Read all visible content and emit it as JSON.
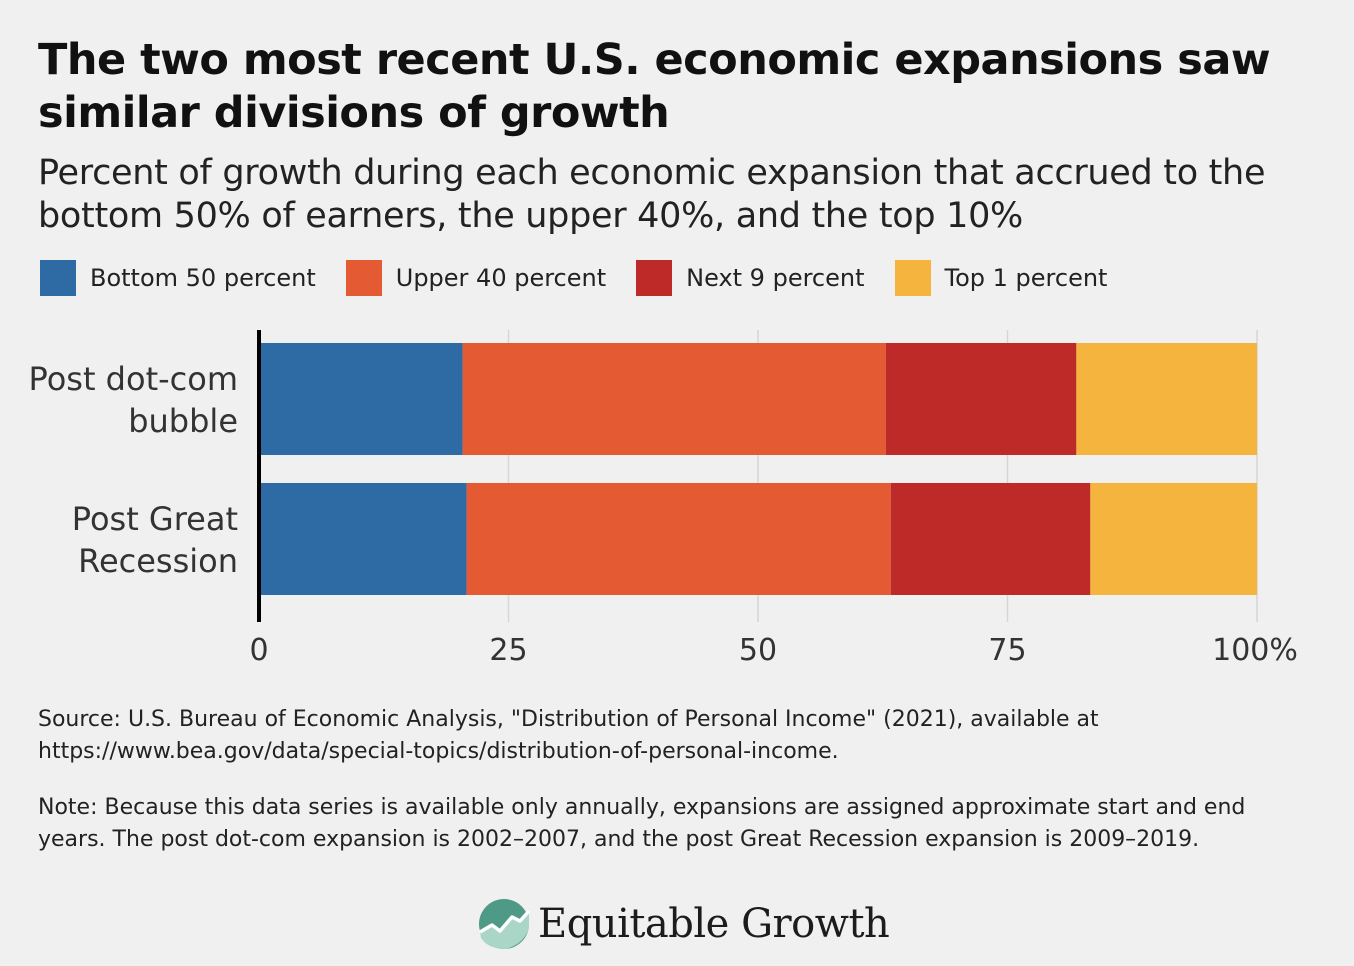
{
  "title": "The two most recent U.S. economic expansions saw similar divisions of growth",
  "subtitle": "Percent of growth during each economic expansion that accrued to the bottom 50% of earners, the upper 40%, and the top 10%",
  "legend": [
    {
      "label": "Bottom 50 percent",
      "color": "#2e6aa3"
    },
    {
      "label": "Upper 40 percent",
      "color": "#e45a33"
    },
    {
      "label": "Next 9 percent",
      "color": "#be2a28"
    },
    {
      "label": "Top 1 percent",
      "color": "#f4b43e"
    }
  ],
  "chart_data": {
    "type": "bar",
    "orientation": "horizontal",
    "stacked": true,
    "categories": [
      "Post dot-com bubble",
      "Post Great Recession"
    ],
    "category_label_lines": [
      [
        "Post dot-com",
        "bubble"
      ],
      [
        "Post Great",
        "Recession"
      ]
    ],
    "series": [
      {
        "name": "Bottom 50 percent",
        "color": "#2e6aa3",
        "values": [
          20.4,
          20.8
        ]
      },
      {
        "name": "Upper 40 percent",
        "color": "#e45a33",
        "values": [
          42.4,
          42.5
        ]
      },
      {
        "name": "Next 9 percent",
        "color": "#be2a28",
        "values": [
          19.1,
          20.0
        ]
      },
      {
        "name": "Top 1 percent",
        "color": "#f4b43e",
        "values": [
          18.1,
          16.7
        ]
      }
    ],
    "xlim": [
      0,
      100
    ],
    "xticks": [
      0,
      25,
      50,
      75,
      100
    ],
    "xtick_labels": [
      "0",
      "25",
      "50",
      "75",
      "100%"
    ],
    "grid": true
  },
  "source": "Source: U.S. Bureau of Economic Analysis, \"Distribution of Personal Income\" (2021), available at https://www.bea.gov/data/special-topics/distribution-of-personal-income.",
  "note": "Note: Because this data series is available only annually, expansions are assigned approximate start and end years. The post dot-com expansion is 2002–2007, and the post Great Recession expansion is 2009–2019.",
  "logo": {
    "text": "Equitable Growth",
    "icon": "equitable-growth-logo-icon"
  }
}
